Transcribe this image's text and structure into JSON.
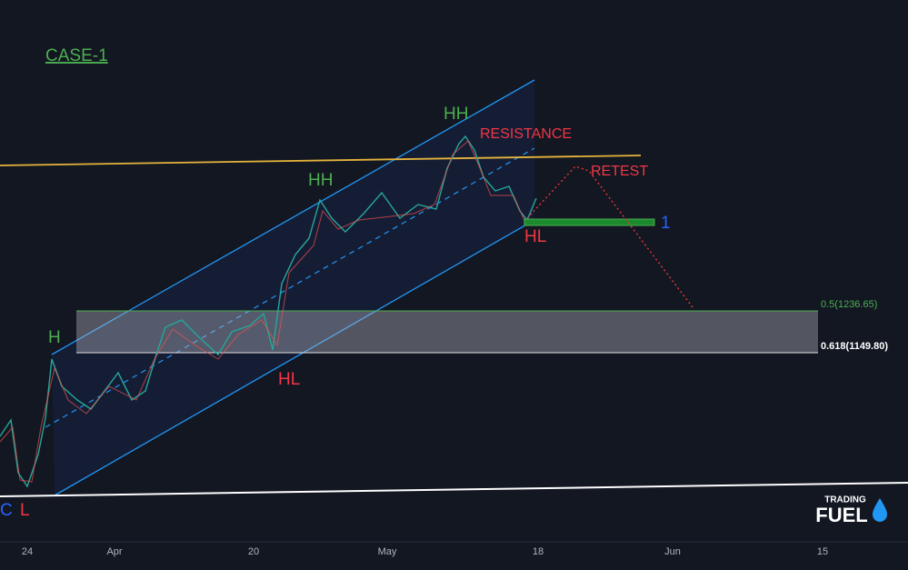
{
  "title": "CASE-1",
  "annotations": {
    "h": "H",
    "hh1": "HH",
    "hh2": "HH",
    "hl1": "HL",
    "hl2": "HL",
    "l": "L",
    "c": "C",
    "resistance": "RESISTANCE",
    "retest": "RETEST",
    "target": "1"
  },
  "fib_levels": [
    "0.5(1236.65)",
    "0.618(1149.80)"
  ],
  "x_axis": [
    "24",
    "Apr",
    "20",
    "May",
    "18",
    "Jun",
    "15"
  ],
  "logo": {
    "top": "TRADING",
    "bottom": "FUEL"
  }
}
